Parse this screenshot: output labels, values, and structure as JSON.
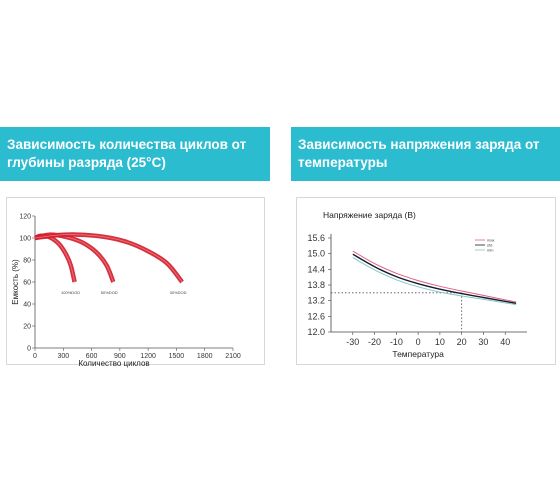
{
  "banners": {
    "left_line1": "Зависимость количества циклов от",
    "left_line2": "глубины разряда (25°С)",
    "right_line1": "Зависимость напряжения заряда от",
    "right_line2": "температуры"
  },
  "chart_data": [
    {
      "type": "line",
      "title": "",
      "xlabel": "Количество циклов",
      "ylabel": "Емкость (%)",
      "xlim": [
        0,
        2100
      ],
      "ylim": [
        0,
        120
      ],
      "x_ticks": [
        "0",
        "300",
        "600",
        "900",
        "1200",
        "1500",
        "1800",
        "2100"
      ],
      "y_ticks": [
        "0",
        "20",
        "40",
        "60",
        "80",
        "100",
        "120"
      ],
      "colors": {
        "curve": "#d0202e",
        "axis": "#555555"
      },
      "series": [
        {
          "name": "100%DOD",
          "points": [
            [
              0,
              100
            ],
            [
              60,
              102
            ],
            [
              150,
              101
            ],
            [
              250,
              95
            ],
            [
              330,
              85
            ],
            [
              380,
              75
            ],
            [
              420,
              60
            ]
          ]
        },
        {
          "name": "50%DOD",
          "points": [
            [
              0,
              100
            ],
            [
              150,
              103
            ],
            [
              330,
              101
            ],
            [
              500,
              96
            ],
            [
              650,
              87
            ],
            [
              760,
              75
            ],
            [
              830,
              60
            ]
          ]
        },
        {
          "name": "30%DOD",
          "points": [
            [
              0,
              100
            ],
            [
              300,
              103
            ],
            [
              650,
              102
            ],
            [
              950,
              97
            ],
            [
              1200,
              88
            ],
            [
              1400,
              77
            ],
            [
              1560,
              60
            ]
          ]
        }
      ]
    },
    {
      "type": "line",
      "title": "Напряжение заряда (В)",
      "xlabel": "Температура",
      "ylabel": "",
      "xlim": [
        -40,
        50
      ],
      "ylim": [
        12.0,
        15.6
      ],
      "x_ticks": [
        "-30",
        "-20",
        "-10",
        "0",
        "10",
        "20",
        "30",
        "40"
      ],
      "y_ticks": [
        "15.6",
        "15.0",
        "14.4",
        "13.8",
        "13.2",
        "12.6",
        "12.0"
      ],
      "reference_line": {
        "x": 20,
        "y": 13.5
      },
      "colors": {
        "max": "#e0607f",
        "mid": "#1a1a2e",
        "min": "#7fc8c8",
        "axis": "#444444",
        "reference": "#555555"
      },
      "legend": [
        "max",
        "std",
        "min"
      ],
      "series": [
        {
          "name": "max",
          "points": [
            [
              -30,
              15.1
            ],
            [
              -20,
              14.62
            ],
            [
              -10,
              14.25
            ],
            [
              0,
              13.97
            ],
            [
              10,
              13.75
            ],
            [
              20,
              13.57
            ],
            [
              30,
              13.4
            ],
            [
              45,
              13.15
            ]
          ]
        },
        {
          "name": "",
          "points": [
            [
              -30,
              14.98
            ],
            [
              -20,
              14.5
            ],
            [
              -10,
              14.12
            ],
            [
              0,
              13.85
            ],
            [
              10,
              13.64
            ],
            [
              20,
              13.47
            ],
            [
              30,
              13.32
            ],
            [
              45,
              13.1
            ]
          ]
        },
        {
          "name": "min",
          "points": [
            [
              -30,
              14.85
            ],
            [
              -20,
              14.38
            ],
            [
              -10,
              14.0
            ],
            [
              0,
              13.73
            ],
            [
              10,
              13.53
            ],
            [
              20,
              13.38
            ],
            [
              30,
              13.25
            ],
            [
              45,
              13.05
            ]
          ]
        }
      ]
    }
  ]
}
